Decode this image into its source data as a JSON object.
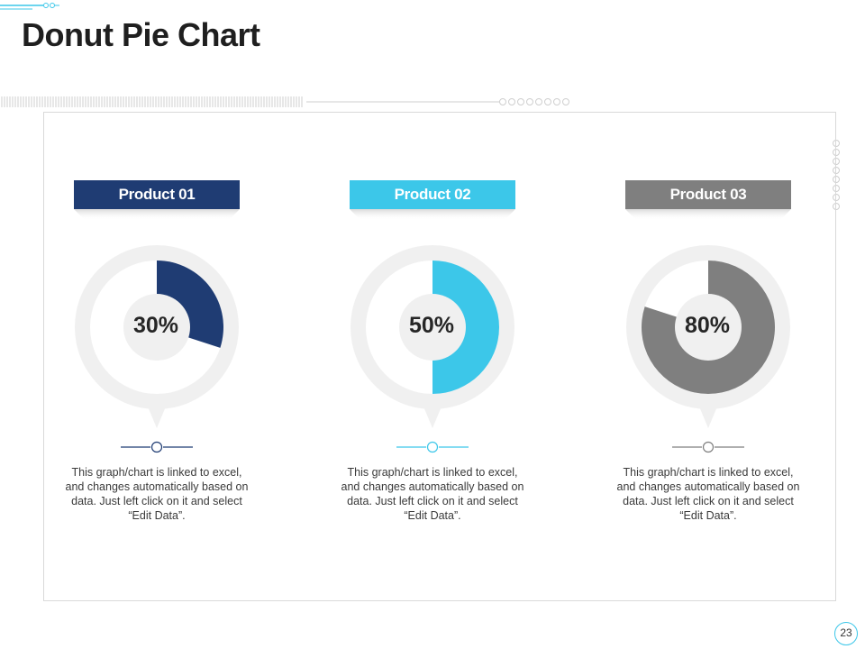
{
  "title": "Donut Pie Chart",
  "page_number": "23",
  "colors": {
    "product_01": "#1f3c73",
    "product_02": "#3cc7e9",
    "product_03": "#7f7f7f",
    "track": "#f0f0f0",
    "accent": "#3cc7e9"
  },
  "chart_data": [
    {
      "type": "pie",
      "title": "Product 01",
      "categories": [
        "Product 01"
      ],
      "values": [
        30
      ],
      "label": "30%"
    },
    {
      "type": "pie",
      "title": "Product 02",
      "categories": [
        "Product 02"
      ],
      "values": [
        50
      ],
      "label": "50%"
    },
    {
      "type": "pie",
      "title": "Product 03",
      "categories": [
        "Product 03"
      ],
      "values": [
        80
      ],
      "label": "80%"
    }
  ],
  "descriptions": [
    "This graph/chart is linked to excel, and changes automatically based on data. Just left click on it and select “Edit Data”.",
    "This graph/chart is linked to excel, and changes automatically based on data. Just left click on it and select “Edit Data”.",
    "This graph/chart is linked to excel, and changes automatically based on data. Just left click on it and select “Edit Data”."
  ]
}
